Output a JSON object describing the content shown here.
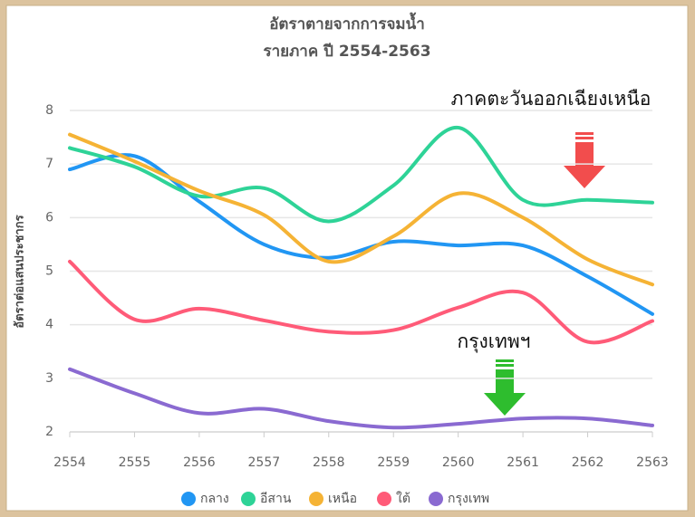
{
  "chart_data": {
    "type": "line",
    "title": "อัตราตายจากการจมน้ำ",
    "subtitle": "รายภาค ปี 2554-2563",
    "y_label": "อัตราต่อแสนประชากร",
    "annotations": [
      "ภาคตะวันออกเฉียงเหนือ",
      "กรุงเทพฯ"
    ],
    "categories": [
      "2554",
      "2555",
      "2556",
      "2557",
      "2558",
      "2559",
      "2560",
      "2561",
      "2562",
      "2563"
    ],
    "series": [
      {
        "name": "กลาง",
        "color": "#2196f3",
        "values": [
          6.9,
          7.15,
          6.3,
          5.5,
          5.25,
          5.55,
          5.48,
          5.48,
          4.9,
          4.2
        ]
      },
      {
        "name": "อีสาน",
        "color": "#2ed397",
        "values": [
          7.3,
          6.95,
          6.4,
          6.55,
          5.93,
          6.6,
          7.68,
          6.33,
          6.33,
          6.28
        ]
      },
      {
        "name": "เหนือ",
        "color": "#f5b335",
        "values": [
          7.55,
          7.05,
          6.5,
          6.05,
          5.18,
          5.65,
          6.45,
          6.0,
          5.22,
          4.75
        ]
      },
      {
        "name": "ใต้",
        "color": "#ff5b78",
        "values": [
          5.18,
          4.1,
          4.3,
          4.08,
          3.87,
          3.9,
          4.32,
          4.6,
          3.68,
          4.07
        ]
      },
      {
        "name": "กรุงเทพ",
        "color": "#8a6ad1",
        "values": [
          3.17,
          2.72,
          2.35,
          2.43,
          2.2,
          2.08,
          2.15,
          2.25,
          2.25,
          2.12
        ]
      }
    ],
    "ylim": [
      2,
      8
    ],
    "yticks": [
      2,
      3,
      4,
      5,
      6,
      7,
      8
    ],
    "grid": true
  }
}
